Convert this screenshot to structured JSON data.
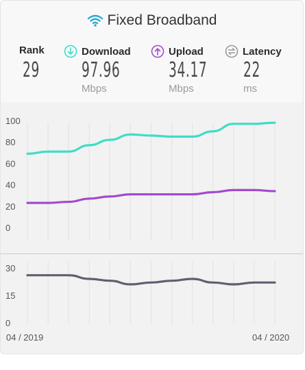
{
  "header": {
    "title": "Fixed Broadband",
    "rank_label": "Rank",
    "rank_value": "29",
    "download_label": "Download",
    "download_value": "97.96",
    "download_unit": "Mbps",
    "upload_label": "Upload",
    "upload_value": "34.17",
    "upload_unit": "Mbps",
    "latency_label": "Latency",
    "latency_value": "22",
    "latency_unit": "ms"
  },
  "colors": {
    "download": "#3dddc8",
    "upload": "#a24ad1",
    "latency": "#5d6070",
    "wifi": "#2aa8d4"
  },
  "icons": {
    "title": "wifi-icon",
    "download": "download-arrow-icon",
    "upload": "upload-arrow-icon",
    "latency": "latency-arrows-icon"
  },
  "chart_data": [
    {
      "type": "line",
      "categories": [
        "",
        "",
        "",
        "",
        "",
        "",
        "",
        "",
        "",
        "",
        "",
        "",
        ""
      ],
      "series": [
        {
          "name": "Download",
          "values": [
            69,
            71,
            71,
            77,
            82,
            87,
            86,
            85,
            85,
            90,
            97,
            97,
            98
          ]
        },
        {
          "name": "Upload",
          "values": [
            23,
            23,
            24,
            27,
            29,
            31,
            31,
            31,
            31,
            33,
            35,
            35,
            34
          ]
        }
      ],
      "yticks": [
        "100",
        "80",
        "60",
        "40",
        "20",
        "0"
      ],
      "ylim": [
        0,
        100
      ],
      "grid": "vertical"
    },
    {
      "type": "line",
      "categories": [
        "",
        "",
        "",
        "",
        "",
        "",
        "",
        "",
        "",
        "",
        "",
        "",
        ""
      ],
      "series": [
        {
          "name": "Latency",
          "values": [
            26,
            26,
            26,
            24,
            23,
            21,
            22,
            23,
            24,
            22,
            21,
            22,
            22
          ]
        }
      ],
      "yticks": [
        "30",
        "15",
        "0"
      ],
      "ylim": [
        0,
        30
      ],
      "grid": "vertical",
      "x_start_label": "04 / 2019",
      "x_end_label": "04 / 2020"
    }
  ]
}
